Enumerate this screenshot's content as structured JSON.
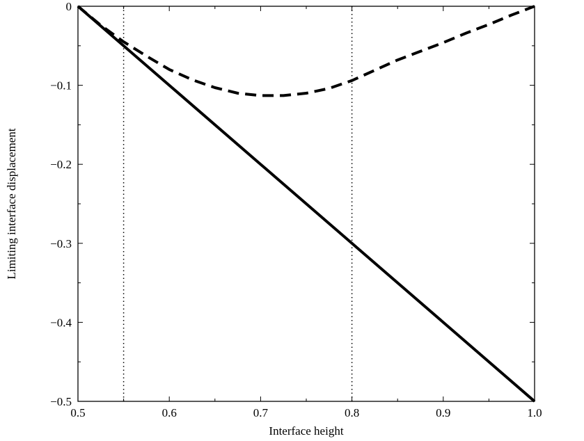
{
  "chart_data": {
    "type": "line",
    "title": "",
    "xlabel": "Interface height",
    "ylabel": "Limiting interface displacement",
    "xlim": [
      0.5,
      1.0
    ],
    "ylim": [
      -0.5,
      0
    ],
    "grid": false,
    "legend": "none",
    "x_ticks": [
      {
        "value": 0.5,
        "label": "0.5"
      },
      {
        "value": 0.6,
        "label": "0.6"
      },
      {
        "value": 0.7,
        "label": "0.7"
      },
      {
        "value": 0.8,
        "label": "0.8"
      },
      {
        "value": 0.9,
        "label": "0.9"
      },
      {
        "value": 1.0,
        "label": "1.0"
      }
    ],
    "y_ticks": [
      {
        "value": 0,
        "label": "0"
      },
      {
        "value": -0.1,
        "label": "−0.1"
      },
      {
        "value": -0.2,
        "label": "−0.2"
      },
      {
        "value": -0.3,
        "label": "−0.3"
      },
      {
        "value": -0.4,
        "label": "−0.4"
      },
      {
        "value": -0.5,
        "label": "−0.5"
      }
    ],
    "x_minor_ticks": [
      0.55,
      0.65,
      0.75,
      0.85,
      0.95
    ],
    "y_minor_ticks": [
      -0.05,
      -0.15,
      -0.25,
      -0.35,
      -0.45
    ],
    "series": [
      {
        "style": "solid",
        "color": "#000000",
        "x": [
          0.5,
          0.6,
          0.7,
          0.8,
          0.9,
          1.0
        ],
        "y": [
          0,
          -0.1,
          -0.2,
          -0.3,
          -0.4,
          -0.5
        ]
      },
      {
        "style": "dashed",
        "color": "#000000",
        "x": [
          0.5,
          0.525,
          0.55,
          0.575,
          0.6,
          0.625,
          0.65,
          0.675,
          0.7,
          0.725,
          0.75,
          0.775,
          0.8,
          0.825,
          0.85,
          0.875,
          0.9,
          0.925,
          0.95,
          0.975,
          1.0
        ],
        "y": [
          0,
          -0.024,
          -0.045,
          -0.063,
          -0.08,
          -0.093,
          -0.103,
          -0.11,
          -0.113,
          -0.113,
          -0.11,
          -0.104,
          -0.094,
          -0.081,
          -0.068,
          -0.057,
          -0.046,
          -0.034,
          -0.023,
          -0.011,
          0
        ]
      }
    ],
    "vertical_reference_lines": [
      {
        "x": 0.55,
        "style": "dotted",
        "color": "#000000"
      },
      {
        "x": 0.8,
        "style": "dotted",
        "color": "#000000"
      }
    ]
  }
}
